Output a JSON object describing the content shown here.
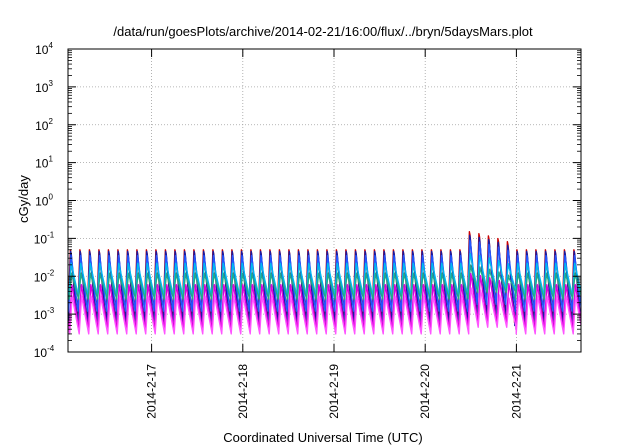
{
  "chart_data": {
    "type": "line",
    "title": "/data/run/goesPlots/archive/2014-02-21/16:00/flux/../bryn/5daysMars.plot",
    "xlabel": "Coordinated Universal Time (UTC)",
    "ylabel": "cGy/day",
    "y_scale": "log",
    "ylim": [
      0.0001,
      10000
    ],
    "y_ticks": [
      {
        "value": 0.0001,
        "base": "10",
        "exp": "-4"
      },
      {
        "value": 0.001,
        "base": "10",
        "exp": "-3"
      },
      {
        "value": 0.01,
        "base": "10",
        "exp": "-2"
      },
      {
        "value": 0.1,
        "base": "10",
        "exp": "-1"
      },
      {
        "value": 1,
        "base": "10",
        "exp": "0"
      },
      {
        "value": 10,
        "base": "10",
        "exp": "1"
      },
      {
        "value": 100,
        "base": "10",
        "exp": "2"
      },
      {
        "value": 1000,
        "base": "10",
        "exp": "3"
      },
      {
        "value": 10000,
        "base": "10",
        "exp": "4"
      }
    ],
    "xlim": [
      "2014-02-16 02:00",
      "2014-02-21 17:00"
    ],
    "x_ticks": [
      {
        "value": "2014-02-17 00:00",
        "label": "2014-2-17"
      },
      {
        "value": "2014-02-18 00:00",
        "label": "2014-2-18"
      },
      {
        "value": "2014-02-19 00:00",
        "label": "2014-2-19"
      },
      {
        "value": "2014-02-20 00:00",
        "label": "2014-2-20"
      },
      {
        "value": "2014-02-21 00:00",
        "label": "2014-2-21"
      }
    ],
    "grid": true,
    "period_hours": 2.5,
    "series": [
      {
        "color": "#cc0000",
        "peak": 0.05,
        "trough": 0.0006,
        "burst_peak": 0.15
      },
      {
        "color": "#1a1aa0",
        "peak": 0.045,
        "trough": 0.0005,
        "burst_peak": 0.12
      },
      {
        "color": "#2255ff",
        "peak": 0.035,
        "trough": 0.0012,
        "burst_peak": 0.09
      },
      {
        "color": "#00bbee",
        "peak": 0.022,
        "trough": 0.003,
        "burst_peak": 0.04
      },
      {
        "color": "#22aa88",
        "peak": 0.012,
        "trough": 0.0025,
        "burst_peak": 0.02
      },
      {
        "color": "#dd00dd",
        "peak": 0.006,
        "trough": 0.0004,
        "burst_peak": 0.012
      },
      {
        "color": "#ff55ff",
        "peak": 0.003,
        "trough": 0.0003,
        "burst_peak": 0.005
      }
    ],
    "burst": {
      "start": "2014-02-20 11:00",
      "end": "2014-02-20 22:00"
    }
  }
}
